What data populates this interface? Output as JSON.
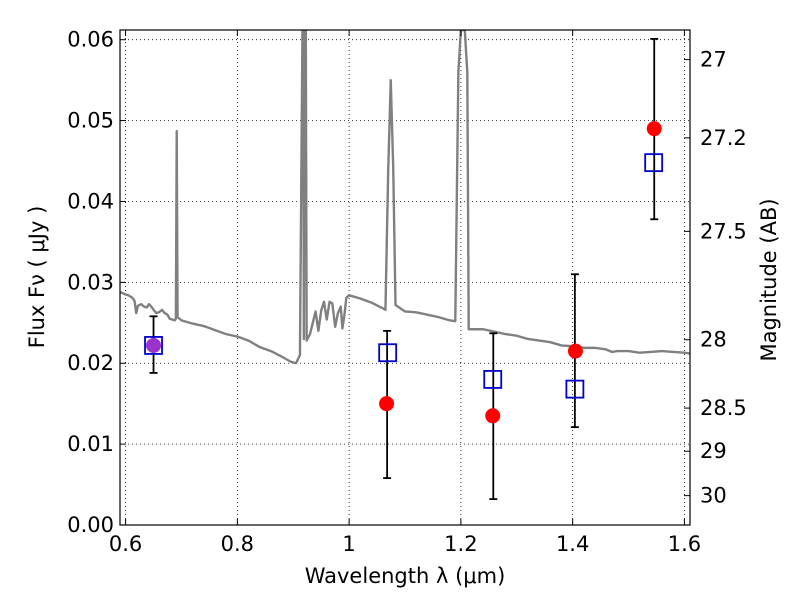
{
  "chart_data": {
    "type": "scatter",
    "xlabel": "Wavelength  λ (μm)",
    "ylabel": "Flux  Fν  ( μJy )",
    "ylabel_right": "Magnitude (AB)",
    "xlim": [
      0.59,
      1.61
    ],
    "ylim": [
      0.0,
      0.0612
    ],
    "grid": true,
    "x_ticks": [
      {
        "v": 0.6,
        "label": "0.6"
      },
      {
        "v": 0.8,
        "label": "0.8"
      },
      {
        "v": 1.0,
        "label": "1"
      },
      {
        "v": 1.2,
        "label": "1.2"
      },
      {
        "v": 1.4,
        "label": "1.4"
      },
      {
        "v": 1.6,
        "label": "1.6"
      }
    ],
    "y_ticks": [
      {
        "v": 0.0,
        "label": "0.00"
      },
      {
        "v": 0.01,
        "label": "0.01"
      },
      {
        "v": 0.02,
        "label": "0.02"
      },
      {
        "v": 0.03,
        "label": "0.03"
      },
      {
        "v": 0.04,
        "label": "0.04"
      },
      {
        "v": 0.05,
        "label": "0.05"
      },
      {
        "v": 0.06,
        "label": "0.06"
      }
    ],
    "right_ticks": [
      {
        "label": "27",
        "mag": 27.0
      },
      {
        "label": "27.2",
        "mag": 27.2
      },
      {
        "label": "27.5",
        "mag": 27.5
      },
      {
        "label": "28",
        "mag": 28.0
      },
      {
        "label": "28.5",
        "mag": 28.5
      },
      {
        "label": "29",
        "mag": 29.0
      },
      {
        "label": "30",
        "mag": 30.0
      }
    ],
    "series": [
      {
        "kind": "line",
        "color": "#808080",
        "points": [
          [
            0.59,
            0.0288
          ],
          [
            0.6,
            0.0285
          ],
          [
            0.605,
            0.0284
          ],
          [
            0.612,
            0.0281
          ],
          [
            0.616,
            0.0277
          ],
          [
            0.619,
            0.0262
          ],
          [
            0.622,
            0.0271
          ],
          [
            0.628,
            0.0273
          ],
          [
            0.633,
            0.027
          ],
          [
            0.638,
            0.0269
          ],
          [
            0.642,
            0.0273
          ],
          [
            0.646,
            0.027
          ],
          [
            0.65,
            0.0266
          ],
          [
            0.655,
            0.0262
          ],
          [
            0.66,
            0.0263
          ],
          [
            0.665,
            0.0266
          ],
          [
            0.67,
            0.0262
          ],
          [
            0.675,
            0.026
          ],
          [
            0.679,
            0.0255
          ],
          [
            0.684,
            0.0254
          ],
          [
            0.688,
            0.0253
          ],
          [
            0.69,
            0.0255
          ],
          [
            0.6915,
            0.0487
          ],
          [
            0.693,
            0.0257
          ],
          [
            0.7,
            0.0253
          ],
          [
            0.72,
            0.0249
          ],
          [
            0.74,
            0.0246
          ],
          [
            0.76,
            0.0241
          ],
          [
            0.78,
            0.0236
          ],
          [
            0.8,
            0.0233
          ],
          [
            0.82,
            0.0228
          ],
          [
            0.84,
            0.022
          ],
          [
            0.86,
            0.0215
          ],
          [
            0.88,
            0.0208
          ],
          [
            0.895,
            0.0202
          ],
          [
            0.905,
            0.02
          ],
          [
            0.912,
            0.021
          ],
          [
            0.9165,
            0.0612
          ],
          [
            0.918,
            0.0612
          ],
          [
            0.919,
            0.023
          ],
          [
            0.92,
            0.0612
          ],
          [
            0.9225,
            0.0612
          ],
          [
            0.924,
            0.0228
          ],
          [
            0.93,
            0.0236
          ],
          [
            0.935,
            0.025
          ],
          [
            0.94,
            0.0264
          ],
          [
            0.945,
            0.024
          ],
          [
            0.95,
            0.0265
          ],
          [
            0.955,
            0.0276
          ],
          [
            0.96,
            0.0254
          ],
          [
            0.965,
            0.0276
          ],
          [
            0.97,
            0.0274
          ],
          [
            0.975,
            0.0245
          ],
          [
            0.98,
            0.0262
          ],
          [
            0.985,
            0.027
          ],
          [
            0.988,
            0.0243
          ],
          [
            0.992,
            0.0262
          ],
          [
            0.995,
            0.0281
          ],
          [
            1.0,
            0.0284
          ],
          [
            1.02,
            0.028
          ],
          [
            1.04,
            0.0275
          ],
          [
            1.06,
            0.0268
          ],
          [
            1.065,
            0.0266
          ],
          [
            1.07,
            0.044
          ],
          [
            1.0745,
            0.055
          ],
          [
            1.079,
            0.044
          ],
          [
            1.083,
            0.0272
          ],
          [
            1.1,
            0.0264
          ],
          [
            1.12,
            0.0263
          ],
          [
            1.14,
            0.026
          ],
          [
            1.16,
            0.0257
          ],
          [
            1.18,
            0.0253
          ],
          [
            1.19,
            0.0252
          ],
          [
            1.1955,
            0.056
          ],
          [
            1.2,
            0.0612
          ],
          [
            1.207,
            0.0612
          ],
          [
            1.2115,
            0.056
          ],
          [
            1.214,
            0.0242
          ],
          [
            1.24,
            0.0242
          ],
          [
            1.26,
            0.0239
          ],
          [
            1.28,
            0.0236
          ],
          [
            1.3,
            0.0234
          ],
          [
            1.32,
            0.023
          ],
          [
            1.34,
            0.0228
          ],
          [
            1.36,
            0.0226
          ],
          [
            1.38,
            0.0222
          ],
          [
            1.4,
            0.0221
          ],
          [
            1.42,
            0.0219
          ],
          [
            1.44,
            0.0219
          ],
          [
            1.46,
            0.0217
          ],
          [
            1.47,
            0.0214
          ],
          [
            1.48,
            0.0215
          ],
          [
            1.5,
            0.0215
          ],
          [
            1.52,
            0.0213
          ],
          [
            1.54,
            0.0214
          ],
          [
            1.56,
            0.0215
          ],
          [
            1.58,
            0.0214
          ],
          [
            1.6,
            0.0213
          ],
          [
            1.61,
            0.0212
          ]
        ]
      },
      {
        "kind": "circles",
        "color": "#ff0000",
        "points": [
          {
            "x": 0.65,
            "y": 0.0222,
            "color": "#9933cc"
          },
          {
            "x": 1.067,
            "y": 0.015
          },
          {
            "x": 1.257,
            "y": 0.0135
          },
          {
            "x": 1.405,
            "y": 0.0215
          },
          {
            "x": 1.546,
            "y": 0.049
          }
        ]
      },
      {
        "kind": "squares",
        "color": "#0000cc",
        "points": [
          {
            "x": 0.65,
            "y": 0.0222
          },
          {
            "x": 1.069,
            "y": 0.0213
          },
          {
            "x": 1.257,
            "y": 0.018
          },
          {
            "x": 1.404,
            "y": 0.0168
          },
          {
            "x": 1.545,
            "y": 0.0448
          }
        ]
      },
      {
        "kind": "errorbars",
        "color": "#000000",
        "points": [
          {
            "x": 0.65,
            "lo": 0.0188,
            "hi": 0.0258
          },
          {
            "x": 1.068,
            "lo": 0.0058,
            "hi": 0.024
          },
          {
            "x": 1.258,
            "lo": 0.0032,
            "hi": 0.0237
          },
          {
            "x": 1.404,
            "lo": 0.0121,
            "hi": 0.031
          },
          {
            "x": 1.546,
            "lo": 0.0378,
            "hi": 0.0601
          }
        ]
      }
    ]
  }
}
